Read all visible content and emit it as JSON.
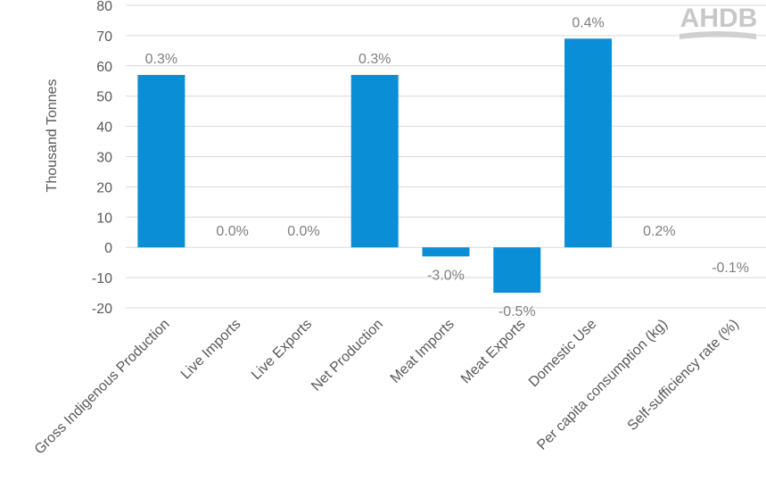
{
  "logo": {
    "text": "AHDB"
  },
  "chart_data": {
    "type": "bar",
    "title": "",
    "xlabel": "",
    "ylabel": "Thousand Tonnes",
    "ylim": [
      -20,
      80
    ],
    "ytick_step": 10,
    "grid": true,
    "bar_color": "#0a8fd6",
    "categories": [
      "Gross Indigenous Production",
      "Live Imports",
      "Live Exports",
      "Net Production",
      "Meat Imports",
      "Meat Exports",
      "Domestic Use",
      "Per capita consumption (kg)",
      "Self-sufficiency rate (%)"
    ],
    "values": [
      57,
      0,
      0,
      57,
      -3,
      -15,
      69,
      0,
      0
    ],
    "data_labels": [
      "0.3%",
      "0.0%",
      "0.0%",
      "0.3%",
      "-3.0%",
      "-0.5%",
      "0.4%",
      "0.2%",
      "-0.1%"
    ]
  }
}
